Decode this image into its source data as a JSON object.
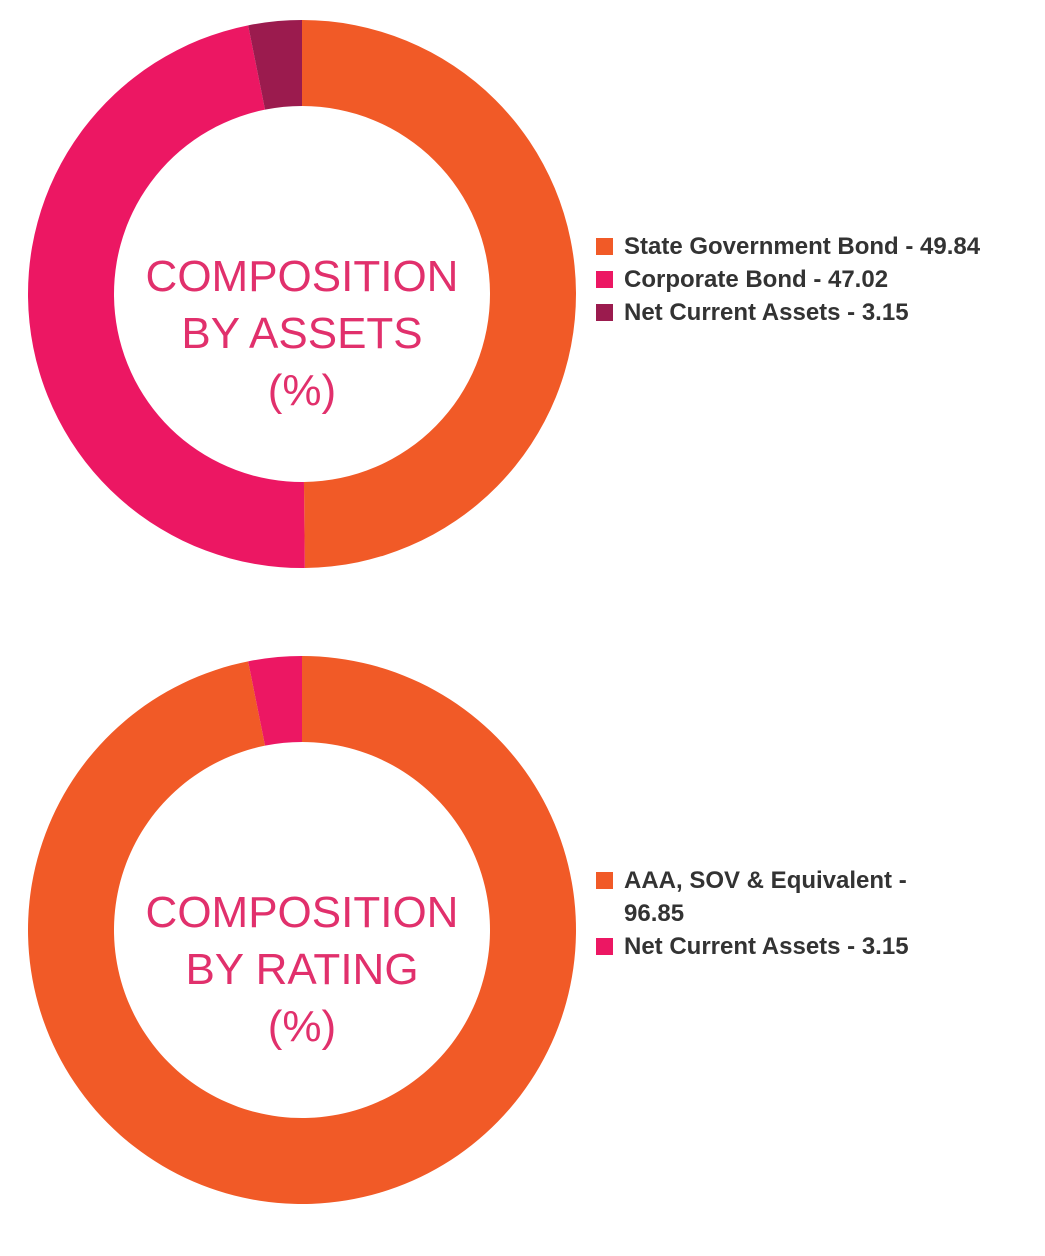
{
  "chart_data": [
    {
      "type": "pie",
      "title_lines": [
        "COMPOSITION",
        "BY ASSETS",
        "(%)"
      ],
      "categories": [
        "State Government Bond",
        "Corporate Bond",
        "Net Current Assets"
      ],
      "values": [
        49.84,
        47.02,
        3.15
      ],
      "colors": [
        "#f15a27",
        "#ec1763",
        "#9b1b4e"
      ],
      "legend_labels": [
        "State Government Bond - 49.84",
        "Corporate Bond - 47.02",
        "Net Current Assets - 3.15"
      ],
      "legend_position": "right"
    },
    {
      "type": "pie",
      "title_lines": [
        "COMPOSITION",
        "BY RATING",
        "(%)"
      ],
      "categories": [
        "AAA, SOV & Equivalent",
        "Net Current Assets"
      ],
      "values": [
        96.85,
        3.15
      ],
      "colors": [
        "#f15a27",
        "#ec1763"
      ],
      "legend_labels": [
        "AAA, SOV & Equivalent - 96.85",
        "Net Current Assets - 3.15"
      ],
      "legend_position": "right"
    }
  ]
}
